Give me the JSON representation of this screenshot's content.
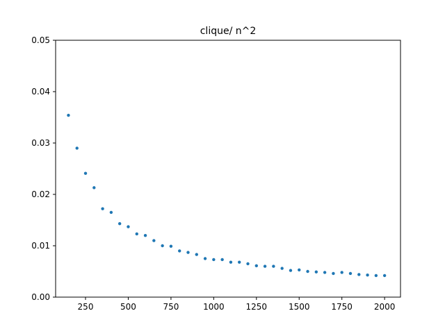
{
  "chart_data": {
    "type": "scatter",
    "title": "clique/ n^2",
    "xlabel": "",
    "ylabel": "",
    "xlim": [
      75,
      2093
    ],
    "ylim": [
      0,
      0.05
    ],
    "x_ticks": [
      250,
      500,
      750,
      1000,
      1250,
      1500,
      1750,
      2000
    ],
    "x_tick_labels": [
      "250",
      "500",
      "750",
      "1000",
      "1250",
      "1500",
      "1750",
      "2000"
    ],
    "y_ticks": [
      0,
      0.01,
      0.02,
      0.03,
      0.04,
      0.05
    ],
    "y_tick_labels": [
      "0.00",
      "0.01",
      "0.02",
      "0.03",
      "0.04",
      "0.05"
    ],
    "grid": false,
    "series": [
      {
        "color": "#1f77b4",
        "x": [
          150,
          200,
          250,
          300,
          350,
          400,
          450,
          500,
          550,
          600,
          650,
          700,
          750,
          800,
          850,
          900,
          950,
          1000,
          1050,
          1100,
          1150,
          1200,
          1250,
          1300,
          1350,
          1400,
          1450,
          1500,
          1550,
          1600,
          1650,
          1700,
          1750,
          1800,
          1850,
          1900,
          1950,
          2000
        ],
        "y": [
          0.0354,
          0.029,
          0.0241,
          0.0213,
          0.0172,
          0.0165,
          0.0143,
          0.0137,
          0.0123,
          0.012,
          0.011,
          0.01,
          0.0099,
          0.009,
          0.0087,
          0.0083,
          0.0075,
          0.0073,
          0.0073,
          0.0068,
          0.0068,
          0.0065,
          0.0061,
          0.006,
          0.006,
          0.0056,
          0.0052,
          0.0053,
          0.005,
          0.0049,
          0.0048,
          0.0046,
          0.0048,
          0.0046,
          0.0044,
          0.0043,
          0.0042,
          0.0042
        ]
      }
    ]
  }
}
